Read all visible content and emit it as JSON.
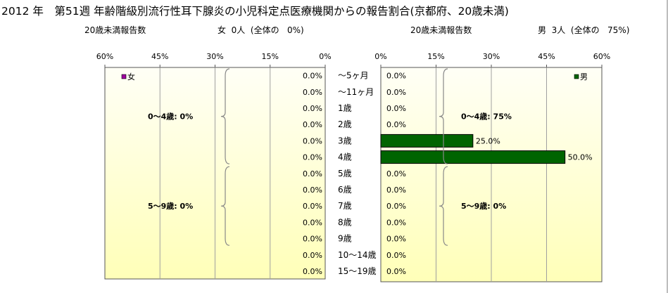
{
  "title": "2012 年　第51週 年齢階級別流行性耳下腺炎の小児科定点医療機関からの報告割合(京都府、20歳未満)",
  "female_header": {
    "label": "20歳未満報告数",
    "summary": "女  0人  (全体の   0%)"
  },
  "male_header": {
    "label": "20歳未満報告数",
    "summary": "男  3人  (全体の   75%)"
  },
  "colors": {
    "female": "#a000a0",
    "male": "#006400",
    "plot_bg_top": "#fffff6",
    "plot_bg_bottom": "#ffffb8"
  },
  "chart_data": [
    {
      "type": "bar",
      "orientation": "horizontal",
      "direction": "right-to-left",
      "series": [
        {
          "name": "女",
          "values": [
            0,
            0,
            0,
            0,
            0,
            0,
            0,
            0,
            0,
            0,
            0,
            0,
            0
          ]
        }
      ],
      "categories": [
        "〜5ヶ月",
        "〜11ヶ月",
        "1歳",
        "2歳",
        "3歳",
        "4歳",
        "5歳",
        "6歳",
        "7歳",
        "8歳",
        "9歳",
        "10〜14歳",
        "15〜19歳"
      ],
      "xlim": [
        0,
        60
      ],
      "ticks": [
        "60%",
        "45%",
        "30%",
        "15%",
        "0%"
      ],
      "tick_values": [
        60,
        45,
        30,
        15,
        0
      ],
      "data_labels": [
        "0.0%",
        "0.0%",
        "0.0%",
        "0.0%",
        "0.0%",
        "0.0%",
        "0.0%",
        "0.0%",
        "0.0%",
        "0.0%",
        "0.0%",
        "0.0%",
        "0.0%"
      ],
      "groups": [
        {
          "label": "0〜4歳:  0%",
          "from": 0,
          "to": 5
        },
        {
          "label": "5〜9歳:  0%",
          "from": 6,
          "to": 10
        }
      ],
      "legend": "top-left",
      "grid": true
    },
    {
      "type": "bar",
      "orientation": "horizontal",
      "direction": "left-to-right",
      "series": [
        {
          "name": "男",
          "values": [
            0,
            0,
            0,
            0,
            25,
            50,
            0,
            0,
            0,
            0,
            0,
            0,
            0
          ]
        }
      ],
      "categories": [
        "〜5ヶ月",
        "〜11ヶ月",
        "1歳",
        "2歳",
        "3歳",
        "4歳",
        "5歳",
        "6歳",
        "7歳",
        "8歳",
        "9歳",
        "10〜14歳",
        "15〜19歳"
      ],
      "xlim": [
        0,
        60
      ],
      "ticks": [
        "0%",
        "15%",
        "30%",
        "45%",
        "60%"
      ],
      "tick_values": [
        0,
        15,
        30,
        45,
        60
      ],
      "data_labels": [
        "0.0%",
        "0.0%",
        "0.0%",
        "0.0%",
        "25.0%",
        "50.0%",
        "0.0%",
        "0.0%",
        "0.0%",
        "0.0%",
        "0.0%",
        "0.0%",
        "0.0%"
      ],
      "groups": [
        {
          "label": "0〜4歳:  75%",
          "from": 0,
          "to": 5
        },
        {
          "label": "5〜9歳:  0%",
          "from": 6,
          "to": 10
        }
      ],
      "legend": "top-right",
      "grid": true
    }
  ]
}
